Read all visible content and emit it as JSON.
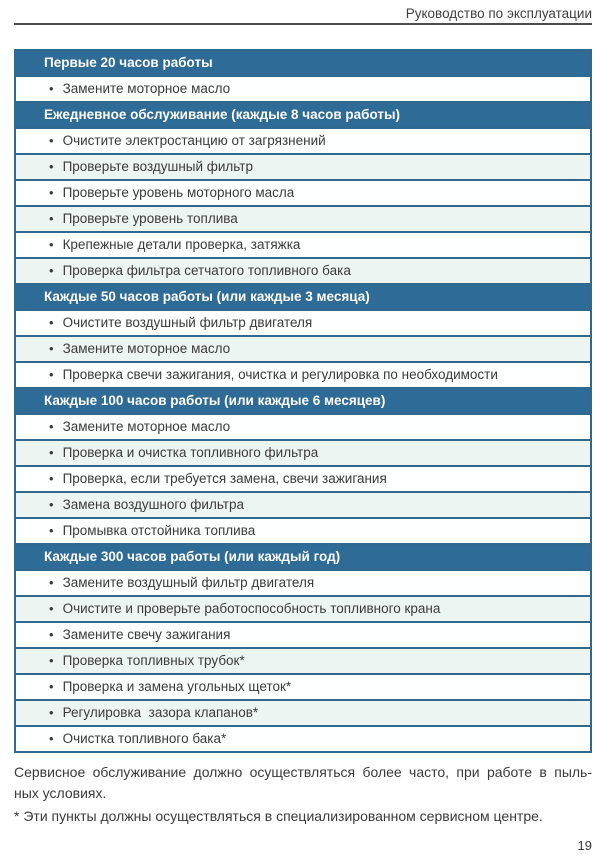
{
  "page": {
    "header": "Руководство по эксплуатации",
    "page_number": "19"
  },
  "table": {
    "bullet": "•",
    "sections": [
      {
        "title": "Первые 20 часов работы",
        "items": [
          "Замените моторное масло"
        ]
      },
      {
        "title": "Ежедневное обслуживание (каждые 8 часов работы)",
        "items": [
          "Очистите электростанцию от загрязнений",
          "Проверьте воздушный фильтр",
          "Проверьте уровень моторного масла",
          "Проверьте уровень топлива",
          "Крепежные детали проверка, затяжка",
          "Проверка фильтра сетчатого топливного бака"
        ]
      },
      {
        "title": "Каждые 50 часов работы (или каждые 3 месяца)",
        "items": [
          "Очистите воздушный фильтр двигателя",
          "Замените моторное масло",
          "Проверка свечи зажигания, очистка и регулировка по необходимости"
        ]
      },
      {
        "title": "Каждые 100 часов работы (или каждые 6 месяцев)",
        "items": [
          "Замените моторное масло",
          "Проверка и очистка топливного фильтра",
          "Проверка, если требуется замена, свечи зажигания",
          "Замена воздушного фильтра",
          "Промывка отстойника топлива"
        ]
      },
      {
        "title": "Каждые 300 часов работы (или каждый год)",
        "items": [
          "Замените воздушный фильтр двигателя",
          "Очистите и проверьте работоспособность топливного крана",
          "Замените свечу зажигания",
          "Проверка топливных трубок*",
          "Проверка и замена угольных щеток*",
          "Регулировка  зазора клапанов*",
          "Очистка топливного бака*"
        ]
      }
    ]
  },
  "footer": {
    "note_lines": [
      "Сервисное обслуживание должно осуществляться более часто, при работе в пыль-",
      "ных условиях."
    ],
    "footnote": "* Эти пункты должны осуществляться в специализированном сервисном центре."
  },
  "colors": {
    "header_bg": "#2e6b96",
    "header_text": "#ffffff",
    "border": "#30698c",
    "row_bg": "#fdfefe",
    "row_alt_bg": "#edf5f2",
    "text": "#3b3b3b"
  }
}
